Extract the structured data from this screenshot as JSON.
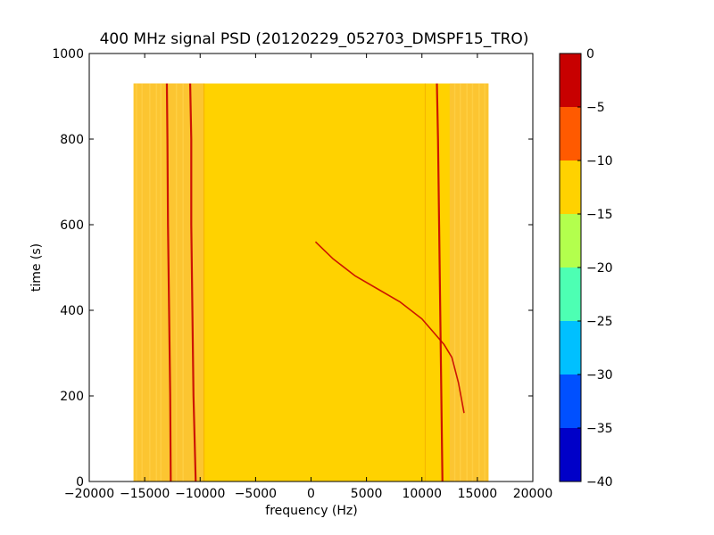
{
  "chart_data": {
    "type": "heatmap",
    "title": "400 MHz signal PSD (20120229_052703_DMSPF15_TRO)",
    "xlabel": "frequency (Hz)",
    "ylabel": "time (s)",
    "xlim": [
      -20000,
      20000
    ],
    "ylim": [
      0,
      1000
    ],
    "xticks": [
      -20000,
      -15000,
      -10000,
      -5000,
      0,
      5000,
      10000,
      15000,
      20000
    ],
    "yticks": [
      0,
      200,
      400,
      600,
      800,
      1000
    ],
    "data_extent": {
      "x": [
        -16000,
        16000
      ],
      "y": [
        0,
        930
      ]
    },
    "colorbar": {
      "ticks": [
        0,
        -5,
        -10,
        -15,
        -20,
        -25,
        -30,
        -35,
        -40
      ],
      "range": [
        -40,
        0
      ],
      "bands": [
        {
          "from": -40,
          "to": -35,
          "color": "#0000c8"
        },
        {
          "from": -35,
          "to": -30,
          "color": "#0050ff"
        },
        {
          "from": -30,
          "to": -25,
          "color": "#00c0ff"
        },
        {
          "from": -25,
          "to": -20,
          "color": "#4dffb3"
        },
        {
          "from": -20,
          "to": -15,
          "color": "#b3ff4d"
        },
        {
          "from": -15,
          "to": -10,
          "color": "#ffd200"
        },
        {
          "from": -10,
          "to": -5,
          "color": "#ff5a00"
        },
        {
          "from": -5,
          "to": 0,
          "color": "#c80000"
        }
      ]
    },
    "background_level_band": [
      -15,
      -10
    ],
    "edge_level_band": [
      -15,
      -10
    ],
    "signal_level_band": [
      -5,
      0
    ],
    "signal_traces": [
      {
        "x": [
          -13000,
          -12950,
          -12900,
          -12800,
          -12700,
          -12650
        ],
        "y": [
          930,
          800,
          600,
          400,
          200,
          0
        ]
      },
      {
        "x": [
          -10900,
          -10800,
          -10800,
          -10700,
          -10600,
          -10500,
          -10400
        ],
        "y": [
          930,
          800,
          600,
          400,
          200,
          100,
          0
        ]
      },
      {
        "x": [
          11350,
          11450,
          11550,
          11650,
          11750,
          11850
        ],
        "y": [
          930,
          800,
          600,
          400,
          200,
          0
        ]
      },
      {
        "x": [
          400,
          2000,
          4000,
          6000,
          8000,
          10000,
          11000,
          12000,
          12700,
          13300,
          13800
        ],
        "y": [
          560,
          520,
          480,
          450,
          420,
          380,
          350,
          320,
          290,
          230,
          160
        ]
      }
    ]
  }
}
